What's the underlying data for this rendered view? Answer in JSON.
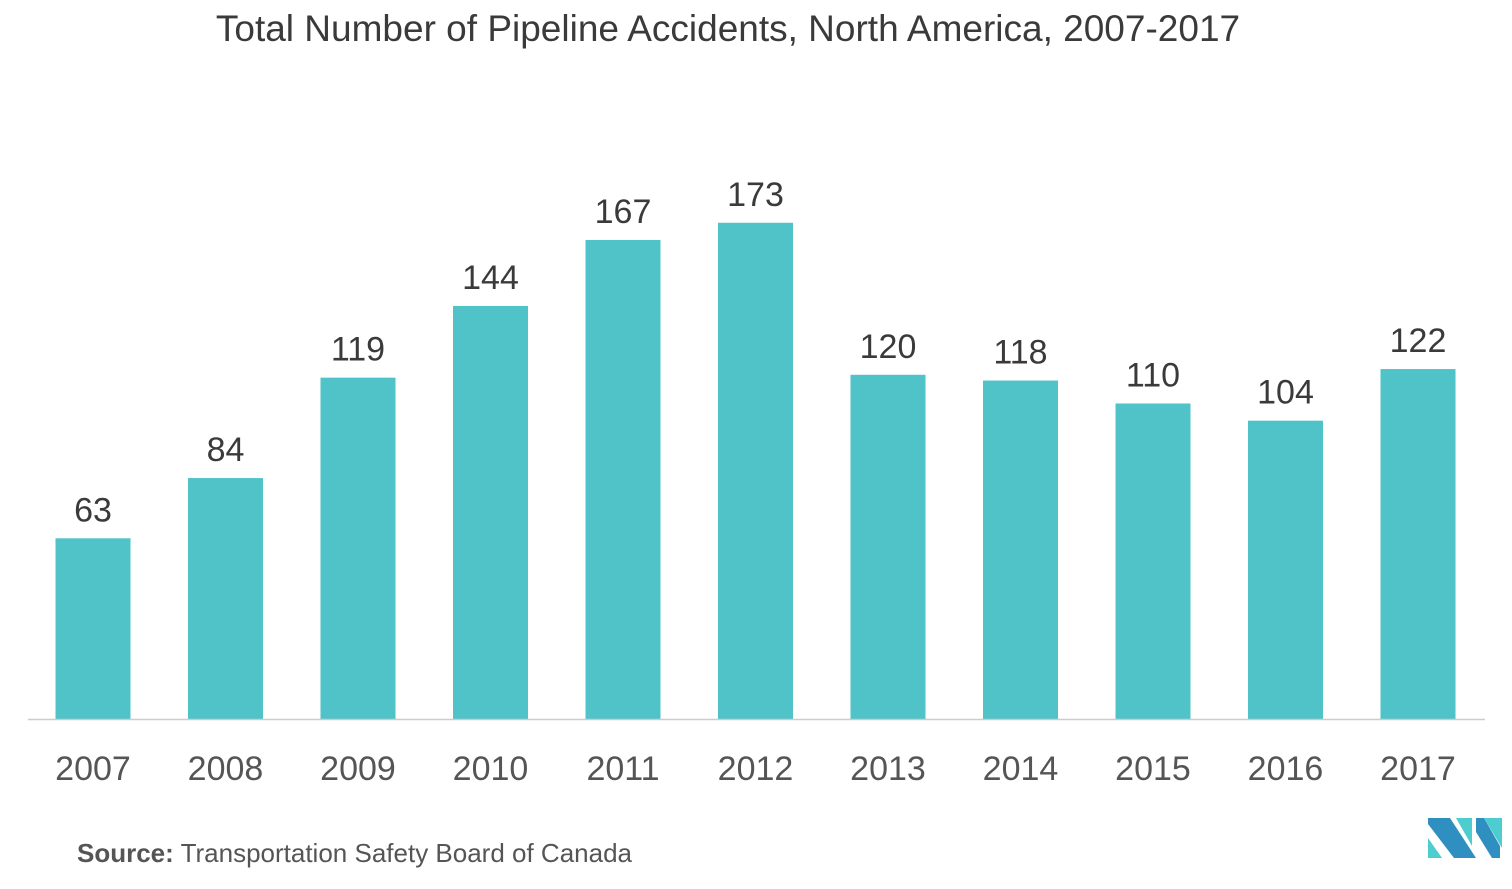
{
  "chart_data": {
    "type": "bar",
    "title": "Total Number of Pipeline Accidents, North America, 2007-2017",
    "categories": [
      "2007",
      "2008",
      "2009",
      "2010",
      "2011",
      "2012",
      "2013",
      "2014",
      "2015",
      "2016",
      "2017"
    ],
    "values": [
      63,
      84,
      119,
      144,
      167,
      173,
      120,
      118,
      110,
      104,
      122
    ],
    "xlabel": "",
    "ylabel": "",
    "ylim": [
      0,
      190
    ],
    "grid": false,
    "bar_color": "#4fc3c8"
  },
  "source": {
    "label": "Source:",
    "text": "Transportation Safety Board of Canada"
  },
  "logo": {
    "colors": [
      "#2e8fc0",
      "#4ecdd0"
    ]
  }
}
